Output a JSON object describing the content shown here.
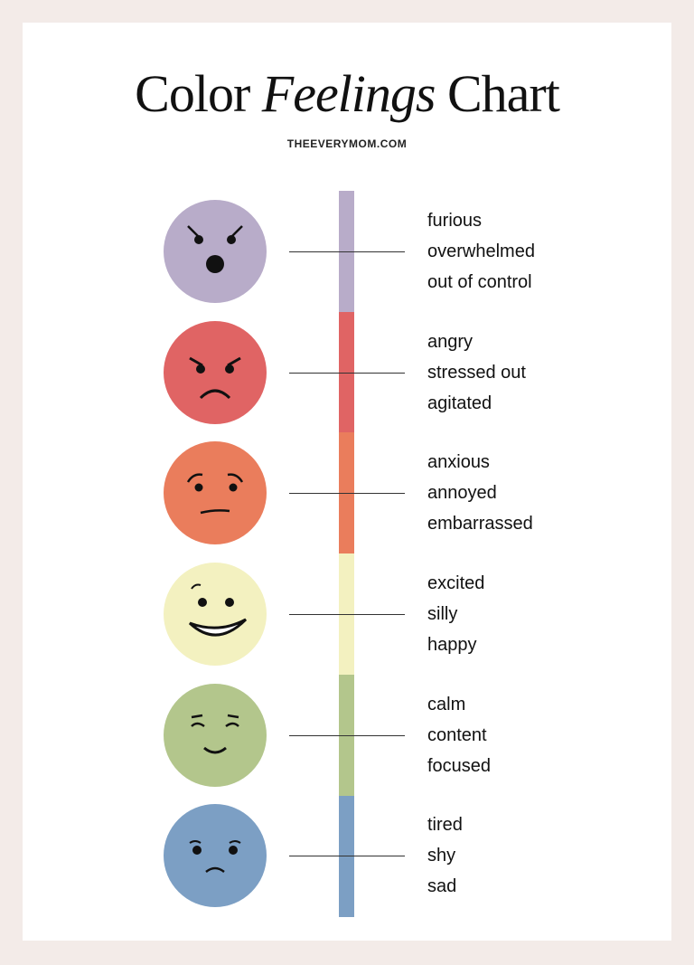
{
  "title": {
    "part1": "Color",
    "part2": "Feelings",
    "part3": "Chart"
  },
  "site": "THEEVERYMOM.COM",
  "groups": [
    {
      "color": "#b8acc9",
      "face": "shocked-angry",
      "feelings": [
        "furious",
        "overwhelmed",
        "out of control"
      ]
    },
    {
      "color": "#e06464",
      "face": "angry",
      "feelings": [
        "angry",
        "stressed out",
        "agitated"
      ]
    },
    {
      "color": "#ea7d5c",
      "face": "worried",
      "feelings": [
        "anxious",
        "annoyed",
        "embarrassed"
      ]
    },
    {
      "color": "#f3f1c0",
      "face": "big-smile",
      "feelings": [
        "excited",
        "silly",
        "happy"
      ]
    },
    {
      "color": "#b3c68c",
      "face": "content",
      "feelings": [
        "calm",
        "content",
        "focused"
      ]
    },
    {
      "color": "#7c9fc4",
      "face": "sad",
      "feelings": [
        "tired",
        "shy",
        "sad"
      ]
    }
  ]
}
